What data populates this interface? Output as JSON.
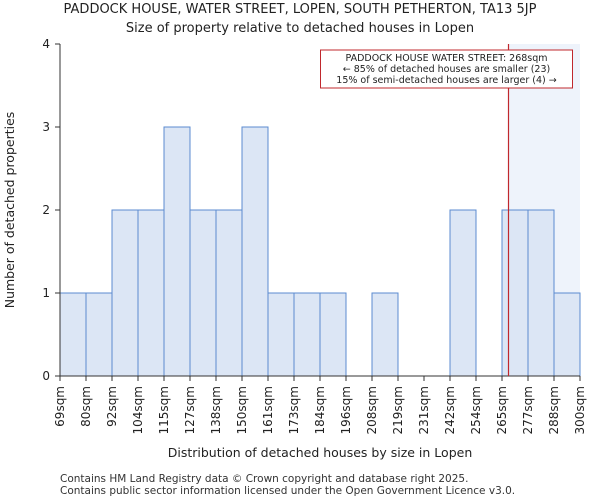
{
  "title": "PADDOCK HOUSE, WATER STREET, LOPEN, SOUTH PETHERTON, TA13 5JP",
  "subtitle": "Size of property relative to detached houses in Lopen",
  "footer": {
    "line1": "Contains HM Land Registry data © Crown copyright and database right 2025.",
    "line2": "Contains public sector information licensed under the Open Government Licence v3.0."
  },
  "colors": {
    "bar_fill": "#dce6f5",
    "bar_stroke": "#5b8bd0",
    "highlight_bg": "#eef3fb",
    "marker": "#c0282d"
  },
  "chart_data": {
    "type": "bar",
    "title": "PADDOCK HOUSE, WATER STREET, LOPEN, SOUTH PETHERTON, TA13 5JP",
    "subtitle": "Size of property relative to detached houses in Lopen",
    "xlabel": "Distribution of detached houses by size in Lopen",
    "ylabel": "Number of detached properties",
    "ylim": [
      0,
      4
    ],
    "yticks": [
      0,
      1,
      2,
      3,
      4
    ],
    "bin_edges": [
      69,
      80,
      92,
      104,
      115,
      127,
      138,
      150,
      161,
      173,
      184,
      196,
      208,
      219,
      231,
      242,
      254,
      265,
      277,
      288,
      300
    ],
    "tick_labels": [
      "69sqm",
      "80sqm",
      "92sqm",
      "104sqm",
      "115sqm",
      "127sqm",
      "138sqm",
      "150sqm",
      "161sqm",
      "173sqm",
      "184sqm",
      "196sqm",
      "208sqm",
      "219sqm",
      "231sqm",
      "242sqm",
      "254sqm",
      "265sqm",
      "277sqm",
      "288sqm",
      "300sqm"
    ],
    "values": [
      1,
      1,
      2,
      2,
      3,
      2,
      2,
      3,
      1,
      1,
      1,
      0,
      1,
      0,
      0,
      2,
      0,
      2,
      2,
      1
    ],
    "marker": {
      "value": 268,
      "annotation": [
        "PADDOCK HOUSE WATER STREET: 268sqm",
        "← 85% of detached houses are smaller (23)",
        "15% of semi-detached houses are larger (4) →"
      ]
    }
  }
}
